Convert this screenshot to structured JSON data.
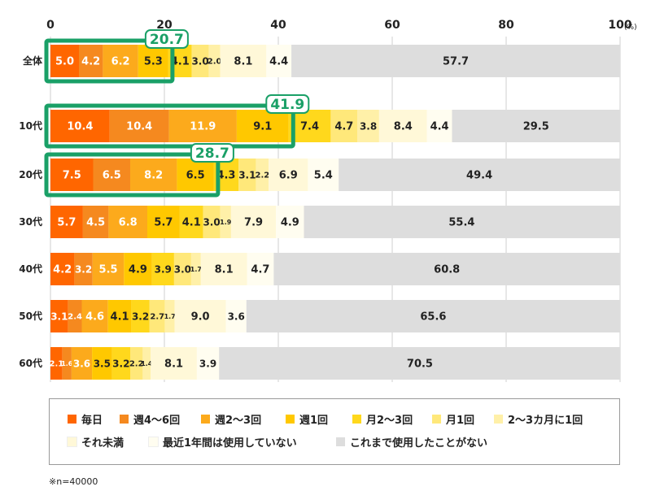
{
  "chart_data": {
    "type": "bar",
    "orientation": "horizontal",
    "stacked": true,
    "x_ticks": [
      "0",
      "20",
      "40",
      "60",
      "80",
      "100"
    ],
    "x_unit": "(%)",
    "xlim": [
      0,
      100
    ],
    "categories": [
      "全体",
      "10代",
      "20代",
      "30代",
      "40代",
      "50代",
      "60代"
    ],
    "series": [
      {
        "name": "毎日",
        "color": "#ff6600",
        "values": [
          5.0,
          10.4,
          7.5,
          5.7,
          4.2,
          3.1,
          2.1
        ]
      },
      {
        "name": "週4～6回",
        "color": "#f5891f",
        "values": [
          4.2,
          10.4,
          6.5,
          4.5,
          3.2,
          2.4,
          1.6
        ]
      },
      {
        "name": "週2～3回",
        "color": "#fcaa1c",
        "values": [
          6.2,
          11.9,
          8.2,
          6.8,
          5.5,
          4.6,
          3.6
        ]
      },
      {
        "name": "週1回",
        "color": "#ffc800",
        "values": [
          5.3,
          9.1,
          6.5,
          5.7,
          4.9,
          4.1,
          3.5
        ]
      },
      {
        "name": "月2～3回",
        "color": "#ffd81c",
        "values": [
          4.1,
          7.4,
          4.3,
          4.1,
          3.9,
          3.2,
          3.2
        ]
      },
      {
        "name": "月1回",
        "color": "#ffe87a",
        "values": [
          3.0,
          4.7,
          3.1,
          3.0,
          3.0,
          2.7,
          2.2
        ]
      },
      {
        "name": "2～3カ月に1回",
        "color": "#fff0a8",
        "values": [
          2.0,
          3.8,
          2.2,
          1.9,
          1.7,
          1.7,
          1.4
        ]
      },
      {
        "name": "それ未満",
        "color": "#fff8d8",
        "values": [
          8.1,
          8.4,
          6.9,
          7.9,
          8.1,
          9.0,
          8.1
        ]
      },
      {
        "name": "最近1年間は使用していない",
        "color": "#fffdf0",
        "values": [
          4.4,
          4.4,
          5.4,
          4.9,
          4.7,
          3.6,
          3.9
        ]
      },
      {
        "name": "これまで使用したことがない",
        "color": "#dddddd",
        "values": [
          57.7,
          29.5,
          49.4,
          55.4,
          60.8,
          65.6,
          70.5
        ]
      }
    ],
    "value_labels": [
      [
        "5.0",
        "4.2",
        "6.2",
        "5.3",
        "4.1",
        "3.0",
        "2.0",
        "8.1",
        "4.4",
        "57.7"
      ],
      [
        "10.4",
        "10.4",
        "11.9",
        "9.1",
        "7.4",
        "4.7",
        "3.8",
        "8.4",
        "4.4",
        "29.5"
      ],
      [
        "7.5",
        "6.5",
        "8.2",
        "6.5",
        "4.3",
        "3.1",
        "2.2",
        "6.9",
        "5.4",
        "49.4"
      ],
      [
        "5.7",
        "4.5",
        "6.8",
        "5.7",
        "4.1",
        "3.0",
        "1.9",
        "7.9",
        "4.9",
        "55.4"
      ],
      [
        "4.2",
        "3.2",
        "5.5",
        "4.9",
        "3.9",
        "3.0",
        "1.7",
        "8.1",
        "4.7",
        "60.8"
      ],
      [
        "3.1",
        "2.4",
        "4.6",
        "4.1",
        "3.2",
        "2.7",
        "1.7",
        "9.0",
        "3.6",
        "65.6"
      ],
      [
        "2.1",
        "1.6",
        "3.6",
        "3.5",
        "3.2",
        "2.2",
        "1.4",
        "8.1",
        "3.9",
        "70.5"
      ]
    ],
    "highlights": [
      {
        "category": "全体",
        "value": 20.7,
        "label": "20.7"
      },
      {
        "category": "10代",
        "value": 41.9,
        "label": "41.9"
      },
      {
        "category": "20代",
        "value": 28.7,
        "label": "28.7"
      }
    ],
    "highlight_color": "#1aa067",
    "note": "※n=40000"
  }
}
